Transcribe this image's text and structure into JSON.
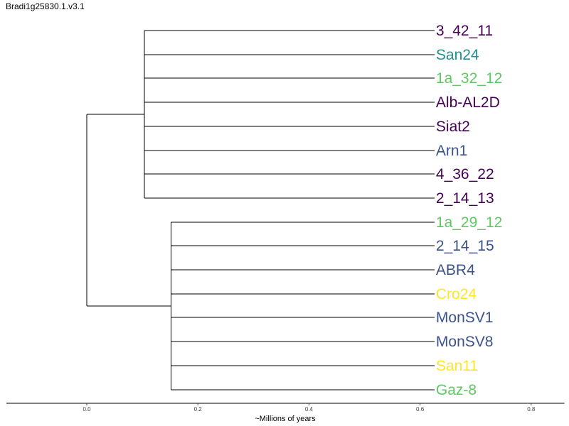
{
  "title": "Bradi1g25830.1.v3.1",
  "colors": {
    "dark_purple": "#440154",
    "teal": "#21918c",
    "green": "#5ec962",
    "blue": "#3b528b",
    "yellow": "#fde725"
  },
  "tree": {
    "root_age": 0.0,
    "clades": [
      {
        "node_age": 0.104,
        "leaves": [
          {
            "label": "3_42_11",
            "color": "#440154"
          },
          {
            "label": "San24",
            "color": "#21918c"
          },
          {
            "label": "1a_32_12",
            "color": "#5ec962"
          },
          {
            "label": "Alb-AL2D",
            "color": "#440154"
          },
          {
            "label": "Siat2",
            "color": "#440154"
          },
          {
            "label": "Arn1",
            "color": "#3b528b"
          },
          {
            "label": "4_36_22",
            "color": "#440154"
          },
          {
            "label": "2_14_13",
            "color": "#440154"
          }
        ]
      },
      {
        "node_age": 0.152,
        "leaves": [
          {
            "label": "1a_29_12",
            "color": "#5ec962"
          },
          {
            "label": "2_14_15",
            "color": "#3b528b"
          },
          {
            "label": "ABR4",
            "color": "#3b528b"
          },
          {
            "label": "Cro24",
            "color": "#fde725"
          },
          {
            "label": "MonSV1",
            "color": "#3b528b"
          },
          {
            "label": "MonSV8",
            "color": "#3b528b"
          },
          {
            "label": "San11",
            "color": "#fde725"
          },
          {
            "label": "Gaz-8",
            "color": "#5ec962"
          }
        ]
      }
    ],
    "leaf_age": 0.626
  },
  "axis": {
    "label": "~Millions of years",
    "range": [
      -0.145,
      0.86
    ],
    "ticks": [
      {
        "value": 0.0,
        "label": "0.0"
      },
      {
        "value": 0.2,
        "label": "0.2"
      },
      {
        "value": 0.4,
        "label": "0.4"
      },
      {
        "value": 0.6,
        "label": "0.6"
      },
      {
        "value": 0.8,
        "label": "0.8"
      }
    ]
  }
}
